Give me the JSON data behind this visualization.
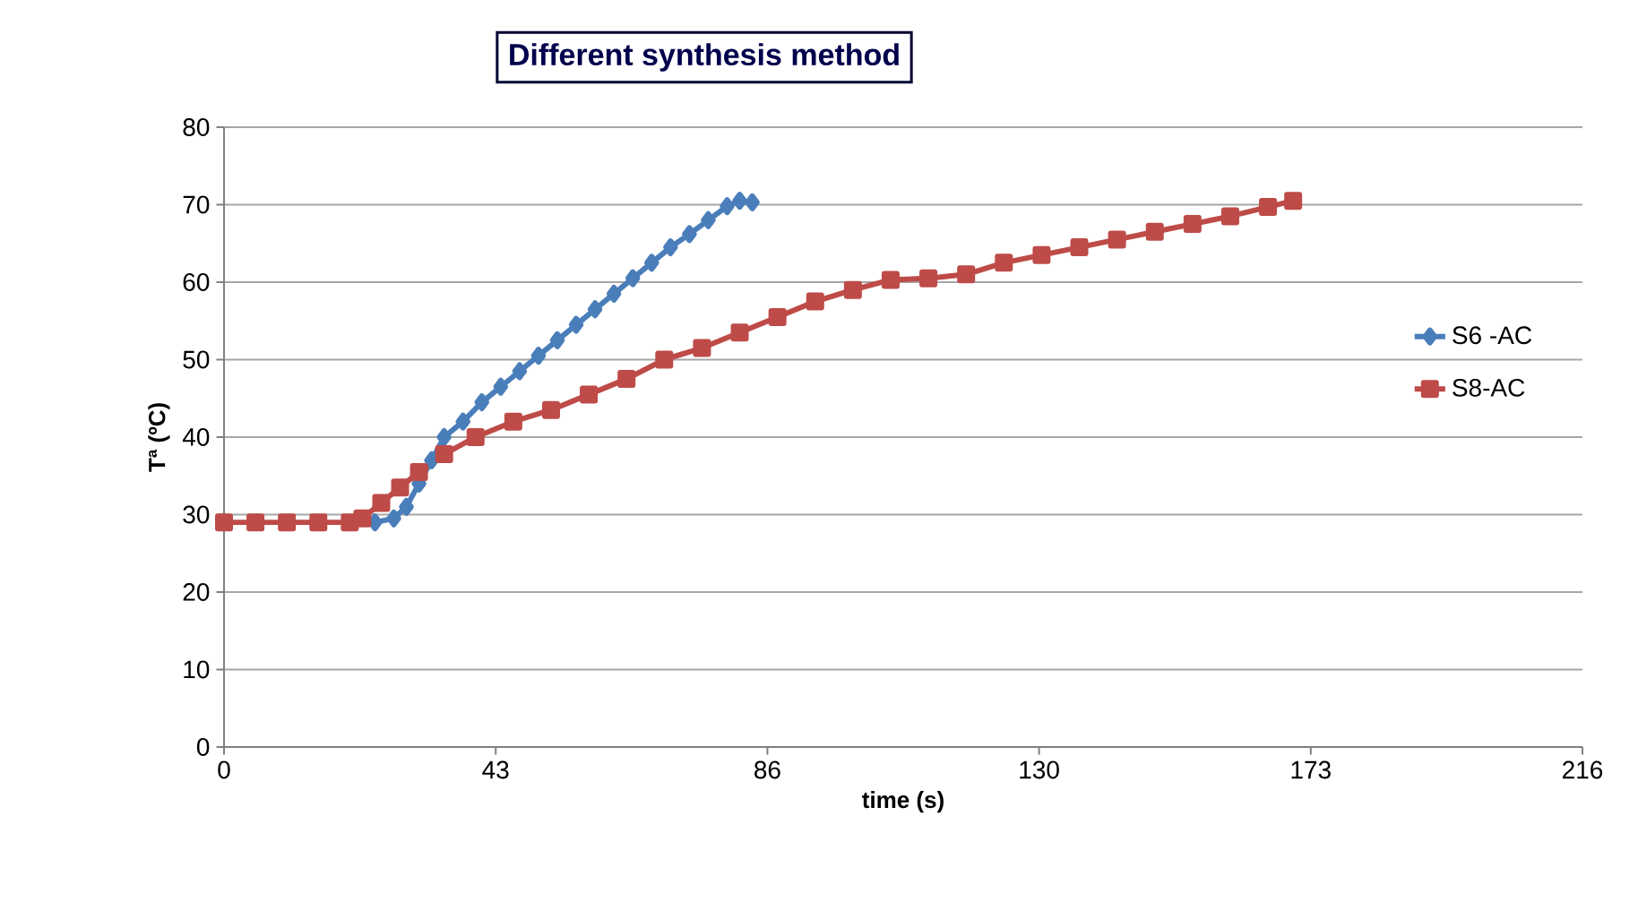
{
  "chart_data": {
    "type": "line",
    "title": "Different synthesis method",
    "xlabel": "time  (s)",
    "ylabel": "Tª (ºC)",
    "xlim": [
      0,
      216
    ],
    "ylim": [
      0,
      80
    ],
    "xticks": [
      0,
      {
        "value": 43.2,
        "label": "43"
      },
      {
        "value": 86.4,
        "label": "86"
      },
      {
        "value": 129.6,
        "label": "130"
      },
      {
        "value": 172.8,
        "label": "173"
      },
      216
    ],
    "yticks": [
      0,
      10,
      20,
      30,
      40,
      50,
      60,
      70,
      80
    ],
    "grid": "y",
    "legend": "right",
    "series": [
      {
        "name": "S6 -AC",
        "color": "#4a7ebb",
        "marker": "diamond",
        "x": [
          24,
          27,
          29,
          31,
          33,
          35,
          38,
          41,
          44,
          47,
          50,
          53,
          56,
          59,
          62,
          65,
          68,
          71,
          74,
          77,
          80,
          82,
          84
        ],
        "values": [
          29,
          29.5,
          31,
          34,
          37,
          40,
          42,
          44.5,
          46.5,
          48.5,
          50.5,
          52.5,
          54.5,
          56.5,
          58.5,
          60.5,
          62.5,
          64.5,
          66.2,
          68,
          69.8,
          70.5,
          70.3
        ]
      },
      {
        "name": "S8-AC",
        "color": "#be4b48",
        "marker": "square",
        "x": [
          0,
          5,
          10,
          15,
          20,
          22,
          25,
          28,
          31,
          35,
          40,
          46,
          52,
          58,
          64,
          70,
          76,
          82,
          88,
          94,
          100,
          106,
          112,
          118,
          124,
          130,
          136,
          142,
          148,
          154,
          160,
          166,
          170
        ],
        "values": [
          29,
          29,
          29,
          29,
          29,
          29.5,
          31.5,
          33.5,
          35.5,
          37.8,
          40,
          42,
          43.5,
          45.5,
          47.5,
          50,
          51.5,
          53.5,
          55.5,
          57.5,
          59,
          60.3,
          60.5,
          61,
          62.5,
          63.5,
          64.5,
          65.5,
          66.5,
          67.5,
          68.5,
          69.7,
          70.5
        ]
      }
    ]
  }
}
